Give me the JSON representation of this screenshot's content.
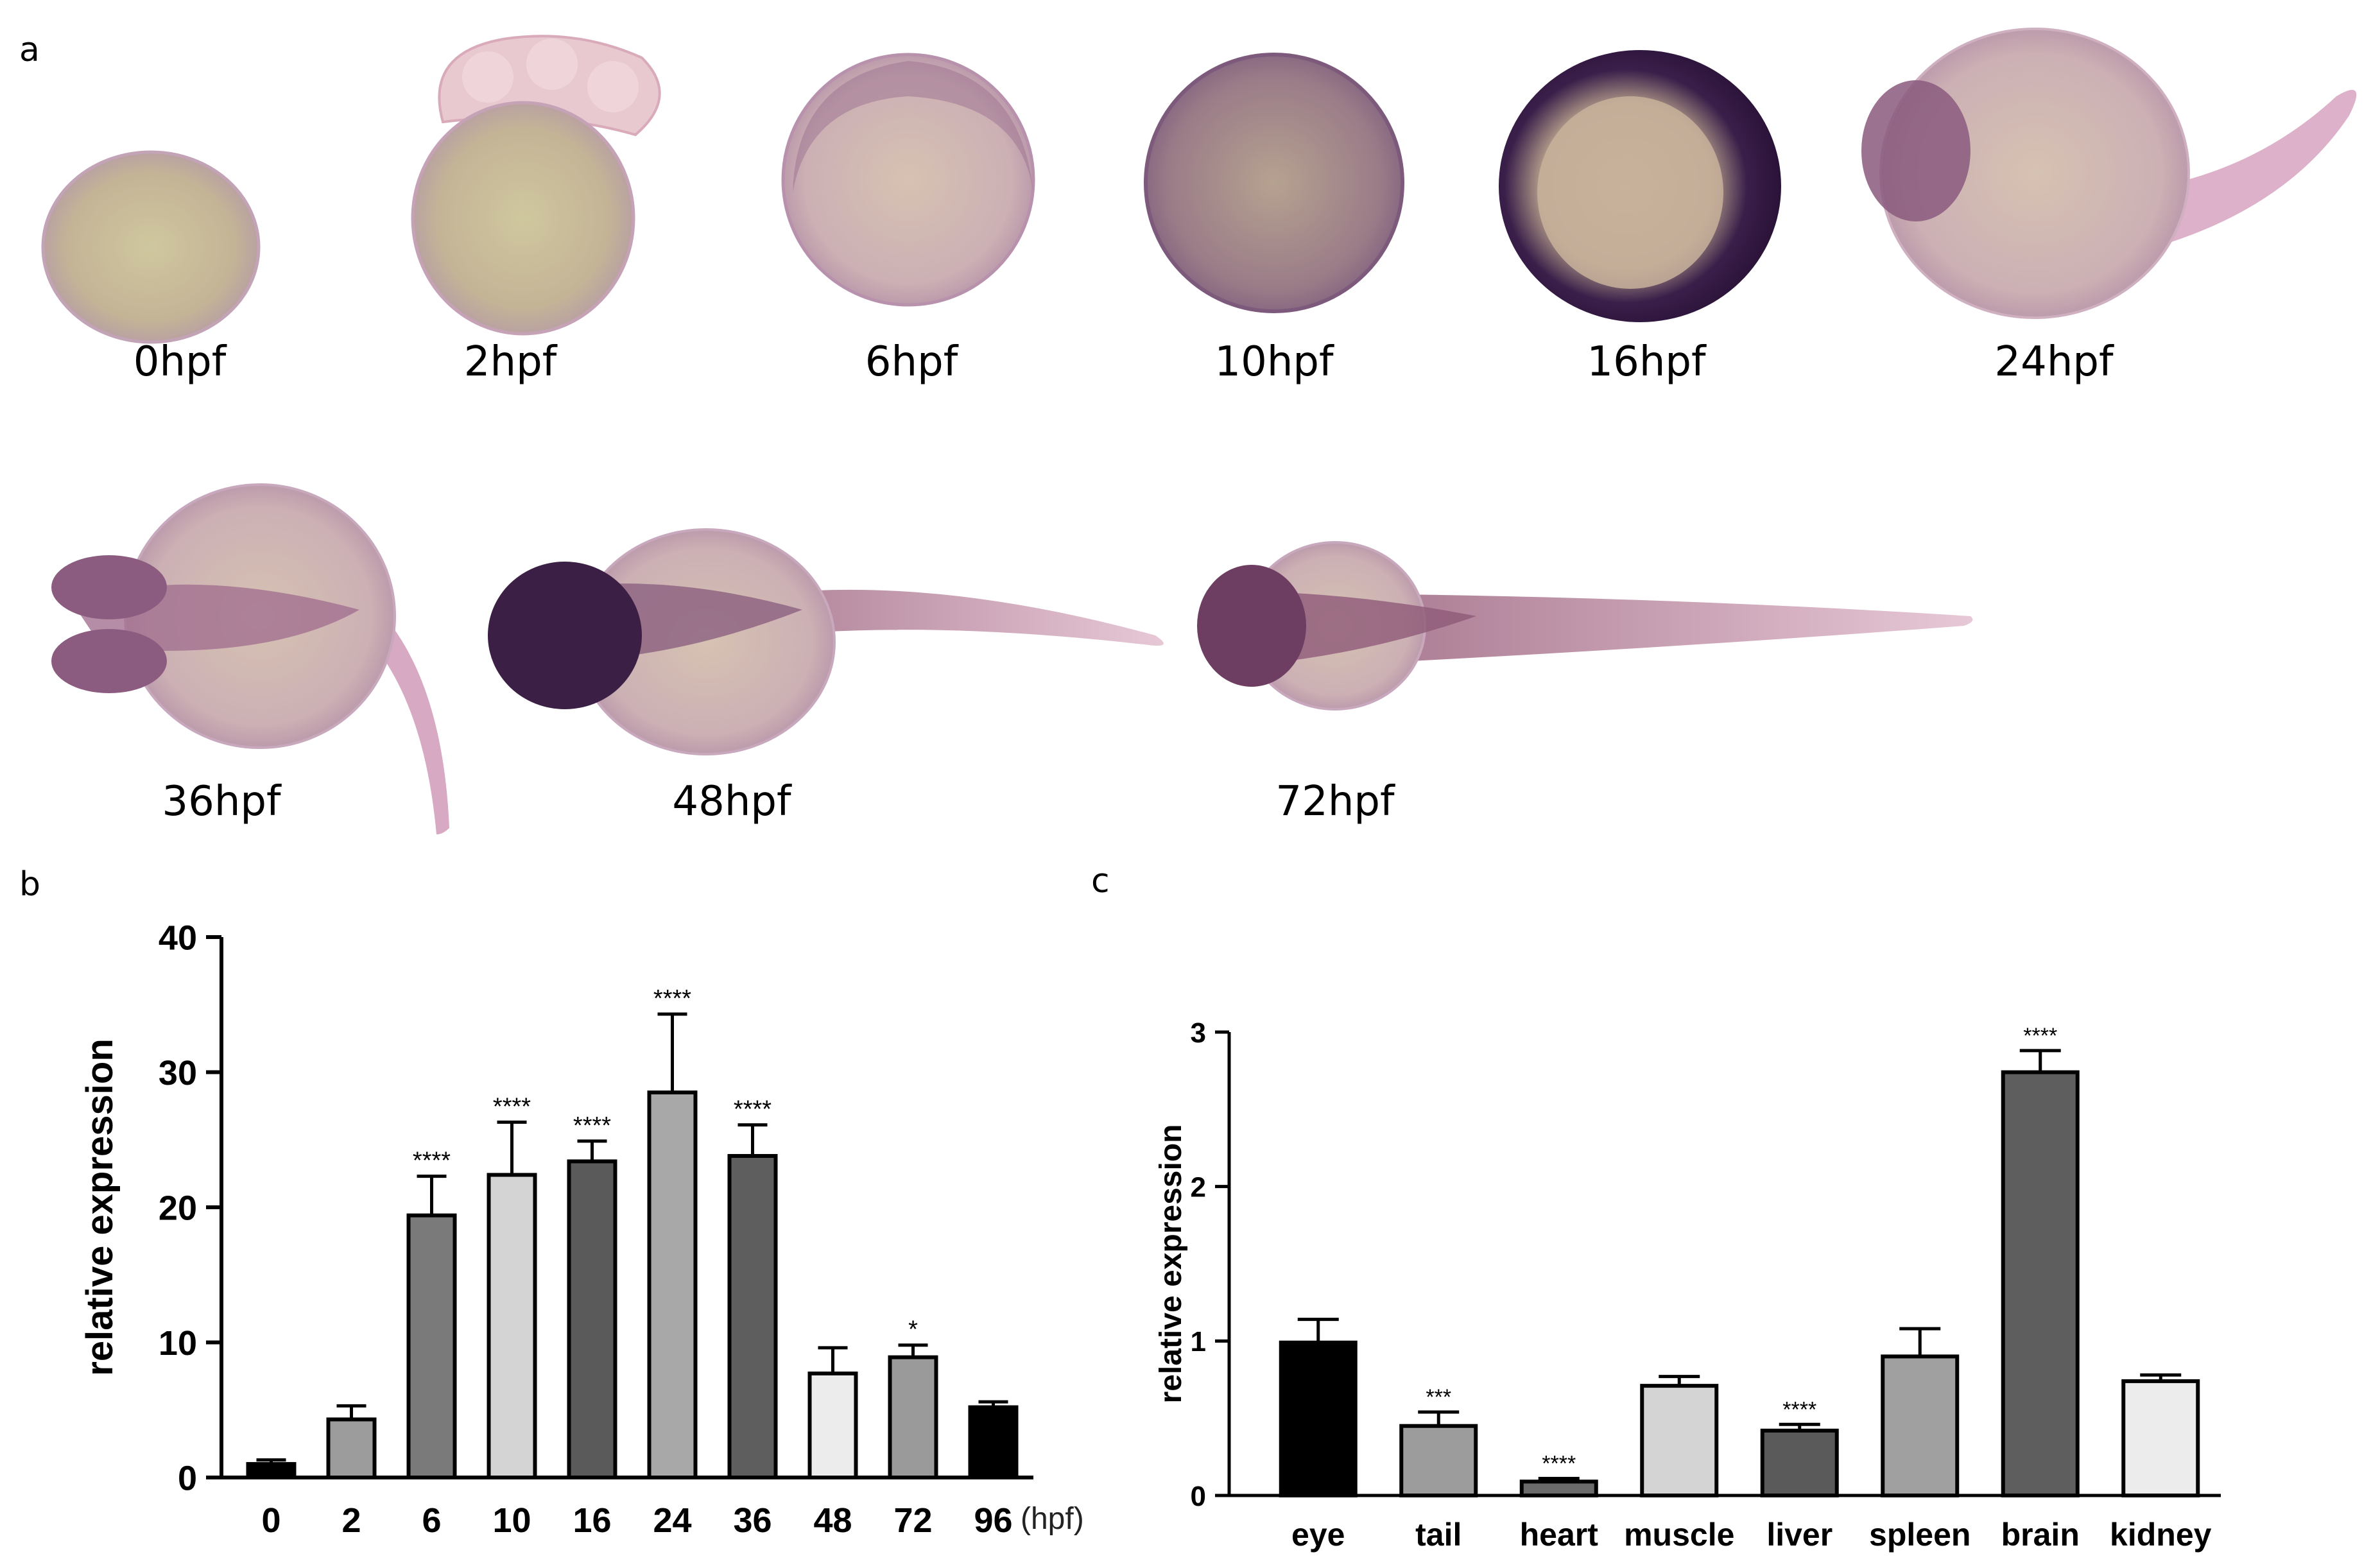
{
  "panels": {
    "a": "a",
    "b": "b",
    "c": "c"
  },
  "embryo_stages": [
    "0hpf",
    "2hpf",
    "6hpf",
    "10hpf",
    "16hpf",
    "24hpf",
    "36hpf",
    "48hpf",
    "72hpf"
  ],
  "chart_data": [
    {
      "type": "bar",
      "panel": "b",
      "ylabel": "relative expression",
      "x_unit": "(hpf)",
      "ylim": [
        0,
        40
      ],
      "yticks": [
        0,
        10,
        20,
        30,
        40
      ],
      "categories": [
        "0",
        "2",
        "6",
        "10",
        "16",
        "24",
        "36",
        "48",
        "72",
        "96"
      ],
      "values": [
        1.0,
        4.3,
        19.4,
        22.4,
        23.4,
        28.5,
        23.8,
        7.7,
        8.9,
        5.2
      ],
      "errors": [
        0.3,
        1.0,
        2.9,
        3.9,
        1.5,
        5.8,
        2.3,
        1.9,
        0.9,
        0.4
      ],
      "significance": [
        "",
        "",
        "****",
        "****",
        "****",
        "****",
        "****",
        "",
        "*",
        ""
      ],
      "bar_colors": [
        "#000000",
        "#9c9c9c",
        "#7a7a7a",
        "#d4d4d4",
        "#5a5a5a",
        "#a8a8a8",
        "#5e5e5e",
        "#ececec",
        "#9a9a9a",
        "#000000"
      ],
      "legend": "none"
    },
    {
      "type": "bar",
      "panel": "c",
      "ylabel": "relative expression",
      "ylim": [
        0,
        3
      ],
      "yticks": [
        0,
        1,
        2,
        3
      ],
      "categories": [
        "eye",
        "tail",
        "heart",
        "muscle",
        "liver",
        "spleen",
        "brain",
        "kidney"
      ],
      "values": [
        0.99,
        0.45,
        0.09,
        0.71,
        0.42,
        0.9,
        2.74,
        0.74
      ],
      "errors": [
        0.15,
        0.09,
        0.02,
        0.06,
        0.04,
        0.18,
        0.14,
        0.04
      ],
      "significance": [
        "",
        "***",
        "****",
        "",
        "****",
        "",
        "****",
        ""
      ],
      "bar_colors": [
        "#000000",
        "#9c9c9c",
        "#6a6a6a",
        "#d4d4d4",
        "#5a5a5a",
        "#a0a0a0",
        "#5e5e5e",
        "#ececec"
      ],
      "legend": "none"
    }
  ]
}
